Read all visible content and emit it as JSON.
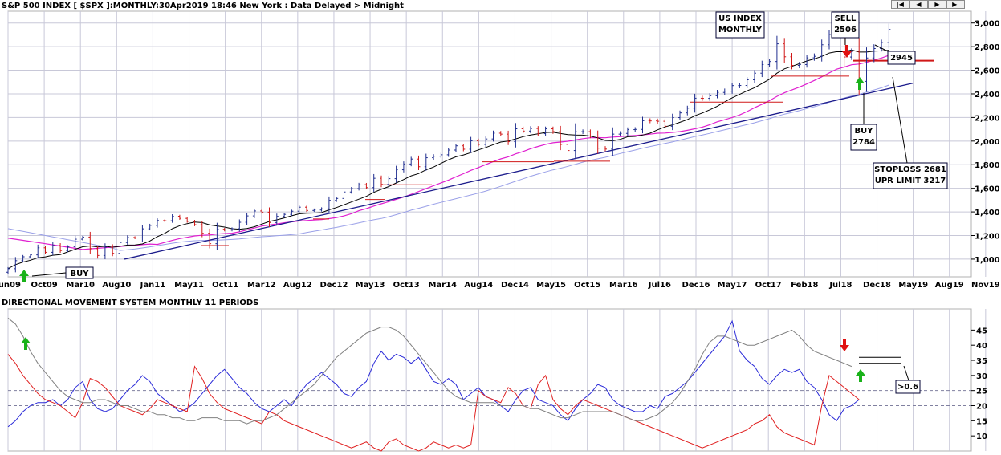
{
  "title_main": "S&P 500 INDEX [ $SPX ]:MONTHLY:30Apr2019 18:46 New York : Data Delayed > Midnight",
  "title_indicator": "DIRECTIONAL MOVEMENT SYSTEM MONTHLY 11 PERIODS",
  "nav_buttons": [
    "|◀",
    "◀",
    "▶",
    "▶|"
  ],
  "annotations": {
    "us_index": [
      "US INDEX",
      "MONTHLY"
    ],
    "sell": [
      "SELL",
      "2506"
    ],
    "buy_right": [
      "BUY",
      "2784"
    ],
    "last_price": "2945",
    "stoploss": [
      "STOPLOSS 2681",
      "UPR LIMIT 3217"
    ],
    "buy_left": "BUY",
    "dmi_label": ">0.6"
  },
  "colors": {
    "up_bar": "#1f2d8f",
    "down_bar": "#d01818",
    "ma_short": "#000000",
    "ma_mid": "#e020d0",
    "ma_long": "#9aa0e8",
    "trendline": "#1c1c8c",
    "stop_line": "#d01818",
    "plus_di": "#2a2ad8",
    "minus_di": "#e02020",
    "adx": "#808080",
    "grid": "#c8c8d8",
    "buy_arrow": "#19b219",
    "sell_arrow": "#e01010"
  },
  "chart_data": [
    {
      "type": "ohlc",
      "x_labels": [
        "Jun09",
        "Oct09",
        "Mar10",
        "Aug10",
        "Jan11",
        "May11",
        "Oct11",
        "Mar12",
        "Aug12",
        "Dec12",
        "May13",
        "Oct13",
        "Mar14",
        "Aug14",
        "Dec14",
        "May15",
        "Oct15",
        "Mar16",
        "Jul16",
        "Dec16",
        "May17",
        "Oct17",
        "Feb18",
        "Jul18",
        "Dec18",
        "May19",
        "Aug19",
        "Nov19"
      ],
      "y_ticks": [
        1000,
        1200,
        1400,
        1600,
        1800,
        2000,
        2200,
        2400,
        2600,
        2800,
        3000
      ],
      "y_tick_labels": [
        "1,000",
        "1,200",
        "1,400",
        "1,600",
        "1,800",
        "2,000",
        "2,200",
        "2,400",
        "2,600",
        "2,800",
        "3,000"
      ],
      "ylim": [
        850,
        3100
      ],
      "close": [
        919,
        987,
        1020,
        1036,
        1096,
        1058,
        1116,
        1073,
        1104,
        1169,
        1187,
        1089,
        1031,
        1102,
        1049,
        1141,
        1183,
        1180,
        1257,
        1286,
        1327,
        1325,
        1363,
        1345,
        1320,
        1292,
        1219,
        1131,
        1253,
        1247,
        1258,
        1312,
        1366,
        1408,
        1398,
        1310,
        1362,
        1379,
        1406,
        1440,
        1412,
        1416,
        1426,
        1498,
        1514,
        1569,
        1597,
        1631,
        1606,
        1685,
        1633,
        1682,
        1757,
        1806,
        1848,
        1783,
        1859,
        1872,
        1884,
        1924,
        1960,
        1931,
        2003,
        1972,
        2018,
        2067,
        2059,
        1995,
        2104,
        2085,
        2107,
        2063,
        2104,
        2080,
        1972,
        1920,
        2079,
        2080,
        2043,
        1940,
        1932,
        2059,
        2065,
        2097,
        2099,
        2173,
        2171,
        2168,
        2126,
        2199,
        2239,
        2279,
        2363,
        2362,
        2384,
        2412,
        2423,
        2470,
        2471,
        2519,
        2575,
        2648,
        2674,
        2824,
        2714,
        2641,
        2648,
        2705,
        2718,
        2816,
        2902,
        2914,
        2712,
        2760,
        2506,
        2704,
        2784,
        2834,
        2945
      ],
      "annotations": [
        {
          "text": "SELL 2506"
        },
        {
          "text": "BUY 2784"
        },
        {
          "text": "2945"
        },
        {
          "text": "STOPLOSS 2681 UPR LIMIT 3217"
        }
      ]
    },
    {
      "type": "line",
      "title": "DIRECTIONAL MOVEMENT SYSTEM MONTHLY 11 PERIODS",
      "y_ticks": [
        10,
        15,
        20,
        25,
        30,
        35,
        40,
        45
      ],
      "ylim": [
        5,
        52
      ],
      "reference_lines": [
        20,
        25
      ],
      "series": [
        {
          "values": [
            13,
            15,
            18,
            20,
            21,
            21,
            22,
            20,
            22,
            26,
            28,
            22,
            19,
            18,
            19,
            22,
            25,
            27,
            30,
            28,
            24,
            22,
            20,
            18,
            19,
            21,
            24,
            27,
            30,
            32,
            29,
            26,
            24,
            21,
            19,
            18,
            20,
            22,
            20,
            24,
            27,
            29,
            31,
            29,
            27,
            24,
            23,
            26,
            28,
            34,
            38,
            35,
            37,
            36,
            34,
            36,
            32,
            28,
            27,
            29,
            27,
            22,
            24,
            26,
            23,
            22,
            20,
            18,
            22,
            25,
            26,
            22,
            21,
            20,
            17,
            15,
            19,
            22,
            24,
            27,
            26,
            22,
            20,
            19,
            18,
            18,
            20,
            19,
            23,
            24,
            26,
            28,
            31,
            34,
            37,
            40,
            43,
            48,
            38,
            35,
            33,
            29,
            27,
            30,
            32,
            31,
            32,
            28,
            26,
            22,
            17,
            15,
            19,
            20,
            22
          ]
        },
        {
          "values": [
            37,
            34,
            30,
            27,
            24,
            22,
            21,
            20,
            18,
            16,
            21,
            29,
            28,
            26,
            23,
            20,
            19,
            18,
            17,
            19,
            22,
            21,
            20,
            19,
            18,
            33,
            29,
            24,
            21,
            19,
            18,
            17,
            16,
            15,
            14,
            18,
            17,
            15,
            14,
            13,
            12,
            11,
            10,
            9,
            8,
            7,
            6,
            7,
            8,
            6,
            5,
            8,
            9,
            7,
            6,
            5,
            6,
            8,
            7,
            6,
            7,
            6,
            7,
            25,
            23,
            22,
            21,
            26,
            24,
            20,
            19,
            27,
            30,
            22,
            19,
            17,
            20,
            22,
            21,
            20,
            19,
            18,
            17,
            16,
            15,
            14,
            13,
            12,
            11,
            10,
            9,
            8,
            7,
            6,
            7,
            8,
            9,
            10,
            11,
            12,
            14,
            15,
            17,
            13,
            11,
            10,
            9,
            8,
            7,
            20,
            30,
            28,
            26,
            24,
            22
          ]
        },
        {
          "values": [
            49,
            47,
            43,
            38,
            34,
            31,
            28,
            25,
            23,
            22,
            21,
            21,
            22,
            22,
            21,
            20,
            20,
            19,
            18,
            18,
            17,
            17,
            16,
            16,
            15,
            15,
            16,
            16,
            16,
            15,
            15,
            15,
            14,
            15,
            15,
            16,
            17,
            19,
            21,
            23,
            25,
            27,
            30,
            33,
            36,
            38,
            40,
            42,
            44,
            45,
            46,
            46,
            45,
            43,
            40,
            37,
            34,
            31,
            28,
            25,
            23,
            22,
            21,
            21,
            21,
            21,
            20,
            20,
            20,
            20,
            19,
            19,
            18,
            17,
            16,
            16,
            17,
            18,
            18,
            18,
            18,
            18,
            17,
            16,
            15,
            15,
            16,
            17,
            19,
            21,
            24,
            28,
            32,
            37,
            41,
            43,
            43,
            42,
            41,
            40,
            40,
            41,
            42,
            43,
            44,
            45,
            43,
            40,
            38,
            37,
            36,
            35,
            34,
            33
          ]
        }
      ]
    }
  ]
}
